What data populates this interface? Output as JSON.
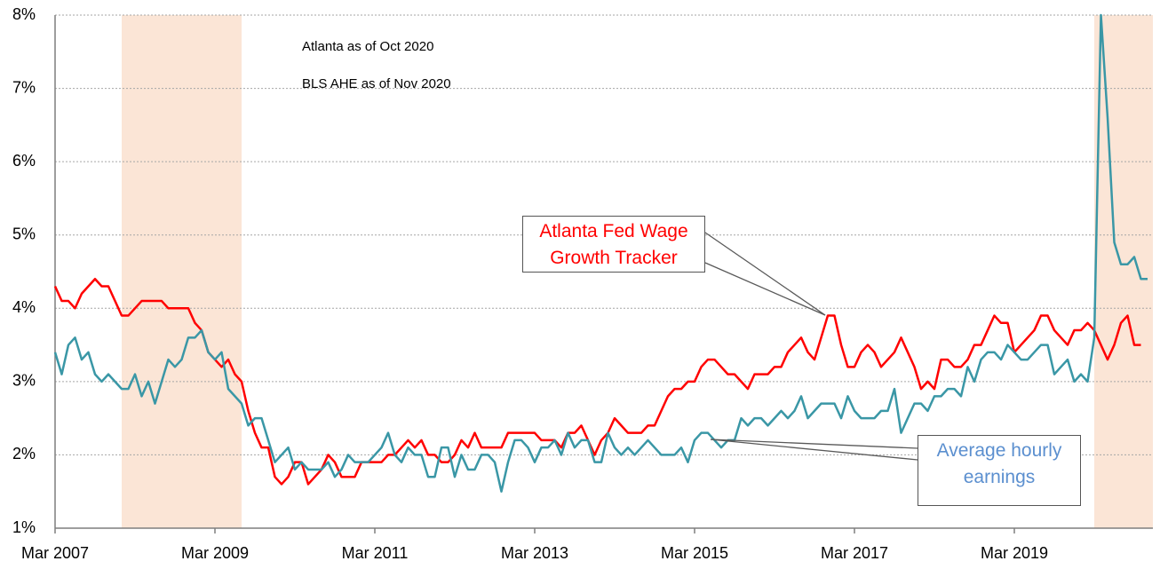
{
  "chart_data": {
    "type": "line",
    "annotations": [
      "Atlanta as of Oct 2020",
      "BLS AHE as of Nov 2020"
    ],
    "x": [
      "Mar 2007",
      "Apr 2007",
      "May 2007",
      "Jun 2007",
      "Jul 2007",
      "Aug 2007",
      "Sep 2007",
      "Oct 2007",
      "Nov 2007",
      "Dec 2007",
      "Jan 2008",
      "Feb 2008",
      "Mar 2008",
      "Apr 2008",
      "May 2008",
      "Jun 2008",
      "Jul 2008",
      "Aug 2008",
      "Sep 2008",
      "Oct 2008",
      "Nov 2008",
      "Dec 2008",
      "Jan 2009",
      "Feb 2009",
      "Mar 2009",
      "Apr 2009",
      "May 2009",
      "Jun 2009",
      "Jul 2009",
      "Aug 2009",
      "Sep 2009",
      "Oct 2009",
      "Nov 2009",
      "Dec 2009",
      "Jan 2010",
      "Feb 2010",
      "Mar 2010",
      "Apr 2010",
      "May 2010",
      "Jun 2010",
      "Jul 2010",
      "Aug 2010",
      "Sep 2010",
      "Oct 2010",
      "Nov 2010",
      "Dec 2010",
      "Jan 2011",
      "Feb 2011",
      "Mar 2011",
      "Apr 2011",
      "May 2011",
      "Jun 2011",
      "Jul 2011",
      "Aug 2011",
      "Sep 2011",
      "Oct 2011",
      "Nov 2011",
      "Dec 2011",
      "Jan 2012",
      "Feb 2012",
      "Mar 2012",
      "Apr 2012",
      "May 2012",
      "Jun 2012",
      "Jul 2012",
      "Aug 2012",
      "Sep 2012",
      "Oct 2012",
      "Nov 2012",
      "Dec 2012",
      "Jan 2013",
      "Feb 2013",
      "Mar 2013",
      "Apr 2013",
      "May 2013",
      "Jun 2013",
      "Jul 2013",
      "Aug 2013",
      "Sep 2013",
      "Oct 2013",
      "Nov 2013",
      "Dec 2013",
      "Jan 2014",
      "Feb 2014",
      "Mar 2014",
      "Apr 2014",
      "May 2014",
      "Jun 2014",
      "Jul 2014",
      "Aug 2014",
      "Sep 2014",
      "Oct 2014",
      "Nov 2014",
      "Dec 2014",
      "Jan 2015",
      "Feb 2015",
      "Mar 2015",
      "Apr 2015",
      "May 2015",
      "Jun 2015",
      "Jul 2015",
      "Aug 2015",
      "Sep 2015",
      "Oct 2015",
      "Nov 2015",
      "Dec 2015",
      "Jan 2016",
      "Feb 2016",
      "Mar 2016",
      "Apr 2016",
      "May 2016",
      "Jun 2016",
      "Jul 2016",
      "Aug 2016",
      "Sep 2016",
      "Oct 2016",
      "Nov 2016",
      "Dec 2016",
      "Jan 2017",
      "Feb 2017",
      "Mar 2017",
      "Apr 2017",
      "May 2017",
      "Jun 2017",
      "Jul 2017",
      "Aug 2017",
      "Sep 2017",
      "Oct 2017",
      "Nov 2017",
      "Dec 2017",
      "Jan 2018",
      "Feb 2018",
      "Mar 2018",
      "Apr 2018",
      "May 2018",
      "Jun 2018",
      "Jul 2018",
      "Aug 2018",
      "Sep 2018",
      "Oct 2018",
      "Nov 2018",
      "Dec 2018",
      "Jan 2019",
      "Feb 2019",
      "Mar 2019",
      "Apr 2019",
      "May 2019",
      "Jun 2019",
      "Jul 2019",
      "Aug 2019",
      "Sep 2019",
      "Oct 2019",
      "Nov 2019",
      "Dec 2019",
      "Jan 2020",
      "Feb 2020",
      "Mar 2020",
      "Apr 2020",
      "May 2020",
      "Jun 2020",
      "Jul 2020",
      "Aug 2020",
      "Sep 2020",
      "Oct 2020",
      "Nov 2020"
    ],
    "xticks": [
      "Mar 2007",
      "Mar 2009",
      "Mar 2011",
      "Mar 2013",
      "Mar 2015",
      "Mar 2017",
      "Mar 2019"
    ],
    "series": [
      {
        "name": "Atlanta Fed Wage Growth Tracker",
        "color": "#ff0000",
        "values": [
          4.3,
          4.1,
          4.1,
          4.0,
          4.2,
          4.3,
          4.4,
          4.3,
          4.3,
          4.1,
          3.9,
          3.9,
          4.0,
          4.1,
          4.1,
          4.1,
          4.1,
          4.0,
          4.0,
          4.0,
          4.0,
          3.8,
          3.7,
          3.4,
          3.3,
          3.2,
          3.3,
          3.1,
          3.0,
          2.6,
          2.3,
          2.1,
          2.1,
          1.7,
          1.6,
          1.7,
          1.9,
          1.9,
          1.6,
          1.7,
          1.8,
          2.0,
          1.9,
          1.7,
          1.7,
          1.7,
          1.9,
          1.9,
          1.9,
          1.9,
          2.0,
          2.0,
          2.1,
          2.2,
          2.1,
          2.2,
          2.0,
          2.0,
          1.9,
          1.9,
          2.0,
          2.2,
          2.1,
          2.3,
          2.1,
          2.1,
          2.1,
          2.1,
          2.3,
          2.3,
          2.3,
          2.3,
          2.3,
          2.2,
          2.2,
          2.2,
          2.1,
          2.3,
          2.3,
          2.4,
          2.2,
          2.0,
          2.2,
          2.3,
          2.5,
          2.4,
          2.3,
          2.3,
          2.3,
          2.4,
          2.4,
          2.6,
          2.8,
          2.9,
          2.9,
          3.0,
          3.0,
          3.2,
          3.3,
          3.3,
          3.2,
          3.1,
          3.1,
          3.0,
          2.9,
          3.1,
          3.1,
          3.1,
          3.2,
          3.2,
          3.4,
          3.5,
          3.6,
          3.4,
          3.3,
          3.6,
          3.9,
          3.9,
          3.5,
          3.2,
          3.2,
          3.4,
          3.5,
          3.4,
          3.2,
          3.3,
          3.4,
          3.6,
          3.4,
          3.2,
          2.9,
          3.0,
          2.9,
          3.3,
          3.3,
          3.2,
          3.2,
          3.3,
          3.5,
          3.5,
          3.7,
          3.9,
          3.8,
          3.8,
          3.4,
          3.5,
          3.6,
          3.7,
          3.9,
          3.9,
          3.7,
          3.6,
          3.5,
          3.7,
          3.7,
          3.8,
          3.7,
          3.5,
          3.3,
          3.5,
          3.8,
          3.9,
          3.5,
          3.5,
          null
        ]
      },
      {
        "name": "Average hourly earnings",
        "color": "#3a97a6",
        "label_color": "#5b8fcf",
        "values": [
          3.4,
          3.1,
          3.5,
          3.6,
          3.3,
          3.4,
          3.1,
          3.0,
          3.1,
          3.0,
          2.9,
          2.9,
          3.1,
          2.8,
          3.0,
          2.7,
          3.0,
          3.3,
          3.2,
          3.3,
          3.6,
          3.6,
          3.7,
          3.4,
          3.3,
          3.4,
          2.9,
          2.8,
          2.7,
          2.4,
          2.5,
          2.5,
          2.2,
          1.9,
          2.0,
          2.1,
          1.8,
          1.9,
          1.8,
          1.8,
          1.8,
          1.9,
          1.7,
          1.8,
          2.0,
          1.9,
          1.9,
          1.9,
          2.0,
          2.1,
          2.3,
          2.0,
          1.9,
          2.1,
          2.0,
          2.0,
          1.7,
          1.7,
          2.1,
          2.1,
          1.7,
          2.0,
          1.8,
          1.8,
          2.0,
          2.0,
          1.9,
          1.5,
          1.9,
          2.2,
          2.2,
          2.1,
          1.9,
          2.1,
          2.1,
          2.2,
          2.0,
          2.3,
          2.1,
          2.2,
          2.2,
          1.9,
          1.9,
          2.3,
          2.1,
          2.0,
          2.1,
          2.0,
          2.1,
          2.2,
          2.1,
          2.0,
          2.0,
          2.0,
          2.1,
          1.9,
          2.2,
          2.3,
          2.3,
          2.2,
          2.1,
          2.2,
          2.2,
          2.5,
          2.4,
          2.5,
          2.5,
          2.4,
          2.5,
          2.6,
          2.5,
          2.6,
          2.8,
          2.5,
          2.6,
          2.7,
          2.7,
          2.7,
          2.5,
          2.8,
          2.6,
          2.5,
          2.5,
          2.5,
          2.6,
          2.6,
          2.9,
          2.3,
          2.5,
          2.7,
          2.7,
          2.6,
          2.8,
          2.8,
          2.9,
          2.9,
          2.8,
          3.2,
          3.0,
          3.3,
          3.4,
          3.4,
          3.3,
          3.5,
          3.4,
          3.3,
          3.3,
          3.4,
          3.5,
          3.5,
          3.1,
          3.2,
          3.3,
          3.0,
          3.1,
          3.0,
          3.6,
          8.0,
          6.6,
          4.9,
          4.6,
          4.6,
          4.7,
          4.4,
          4.4
        ]
      }
    ],
    "ylim": [
      1,
      8
    ],
    "yticks": [
      {
        "value": 1,
        "label": "1%"
      },
      {
        "value": 2,
        "label": "2%"
      },
      {
        "value": 3,
        "label": "3%"
      },
      {
        "value": 4,
        "label": "4%"
      },
      {
        "value": 5,
        "label": "5%"
      },
      {
        "value": 6,
        "label": "6%"
      },
      {
        "value": 7,
        "label": "7%"
      },
      {
        "value": 8,
        "label": "8%"
      }
    ],
    "grid": true,
    "shaded_periods": [
      {
        "start": "Jan 2008",
        "end": "Jul 2009"
      },
      {
        "start": "Mar 2020",
        "end": "Nov 2020"
      }
    ],
    "shade_color": "#fbe5d6"
  }
}
